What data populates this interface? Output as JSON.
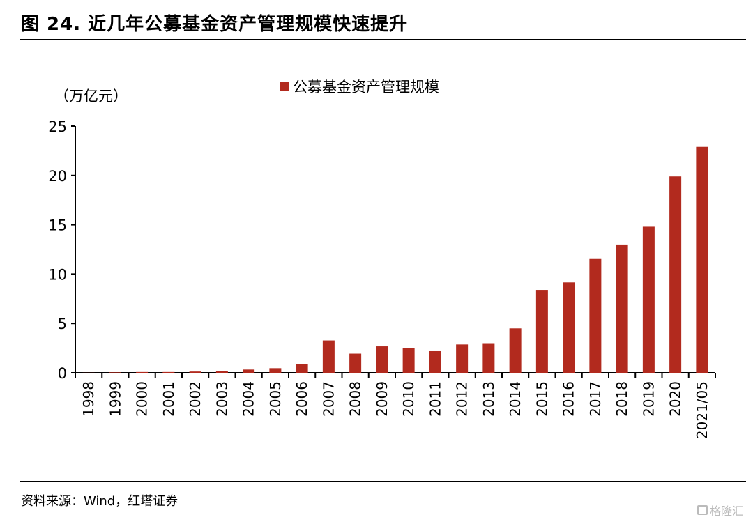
{
  "header": {
    "title": "图 24. 近几年公募基金资产管理规模快速提升"
  },
  "footer": {
    "source": "资料来源：Wind，红塔证券",
    "watermark": "格隆汇"
  },
  "colors": {
    "bar": "#B22A1E",
    "axis": "#000000"
  },
  "chart_data": {
    "type": "bar",
    "title": "",
    "ylabel": "（万亿元）",
    "xlabel": "",
    "ylim": [
      0,
      25
    ],
    "yticks": [
      0,
      5,
      10,
      15,
      20,
      25
    ],
    "legend": {
      "position": "top-center",
      "entries": [
        "公募基金资产管理规模"
      ]
    },
    "grid": false,
    "categories": [
      "1998",
      "1999",
      "2000",
      "2001",
      "2002",
      "2003",
      "2004",
      "2005",
      "2006",
      "2007",
      "2008",
      "2009",
      "2010",
      "2011",
      "2012",
      "2013",
      "2014",
      "2015",
      "2016",
      "2017",
      "2018",
      "2019",
      "2020",
      "2021/05"
    ],
    "series": [
      {
        "name": "公募基金资产管理规模",
        "values": [
          0.01,
          0.05,
          0.08,
          0.08,
          0.13,
          0.16,
          0.33,
          0.47,
          0.86,
          3.28,
          1.94,
          2.68,
          2.52,
          2.19,
          2.87,
          3.0,
          4.5,
          8.4,
          9.16,
          11.6,
          13.0,
          14.8,
          19.9,
          22.9
        ]
      }
    ]
  }
}
